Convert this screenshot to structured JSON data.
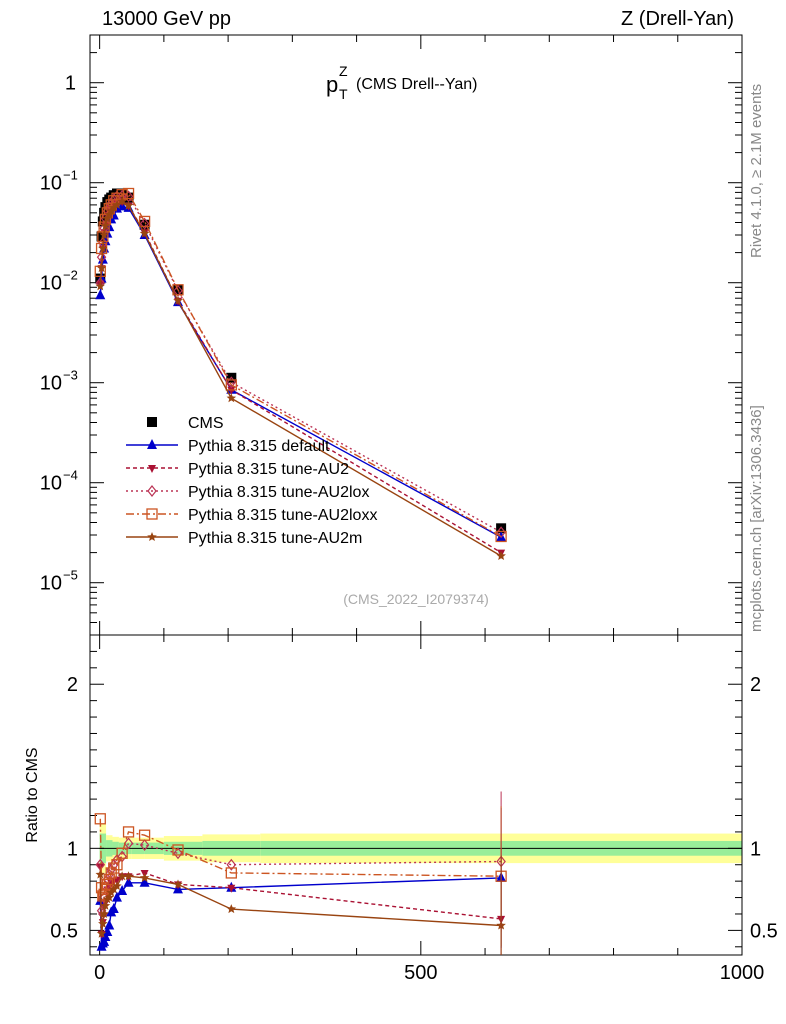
{
  "header": {
    "left": "13000 GeV pp",
    "right": "Z (Drell-Yan)"
  },
  "side_labels": {
    "top": "Rivet 4.1.0, ≥ 2.1M events",
    "bottom": "mcplots.cern.ch [arXiv:1306.3436]"
  },
  "chart_data": [
    {
      "type": "line",
      "panel": "main",
      "title": "p_T^Z (CMS Drell--Yan)",
      "title_main": "p",
      "title_sup": "Z",
      "title_sub": "T",
      "title_rest": "(CMS Drell--Yan)",
      "watermark": "(CMS_2022_I2079374)",
      "yscale": "log",
      "ylim": [
        3e-06,
        3.0
      ],
      "xlim": [
        -15,
        1000
      ],
      "yticks": [
        {
          "value": 1,
          "label": "1"
        },
        {
          "value": 0.1,
          "label": "10",
          "exp": "−1"
        },
        {
          "value": 0.01,
          "label": "10",
          "exp": "−2"
        },
        {
          "value": 0.001,
          "label": "10",
          "exp": "−3"
        },
        {
          "value": 0.0001,
          "label": "10",
          "exp": "−4"
        },
        {
          "value": 1e-05,
          "label": "10",
          "exp": "−5"
        }
      ],
      "legend_position": "lower-left",
      "series": [
        {
          "name": "CMS",
          "color": "#000000",
          "marker": "square",
          "dash": "none",
          "x": [
            1,
            3,
            5,
            7,
            9,
            12,
            15,
            18,
            22,
            27,
            35,
            45,
            70,
            122,
            205,
            625
          ],
          "y": [
            0.011,
            0.029,
            0.041,
            0.05,
            0.057,
            0.064,
            0.068,
            0.071,
            0.075,
            0.078,
            0.078,
            0.071,
            0.038,
            0.0085,
            0.00112,
            3.5e-05
          ]
        },
        {
          "name": "Pythia 8.315 default",
          "color": "#0000cc",
          "marker": "triangle-up",
          "dash": "none",
          "x": [
            1,
            3,
            5,
            7,
            9,
            12,
            15,
            18,
            22,
            27,
            35,
            45,
            70,
            122,
            205,
            625
          ],
          "y": [
            0.0075,
            0.011,
            0.017,
            0.022,
            0.026,
            0.031,
            0.036,
            0.043,
            0.047,
            0.055,
            0.058,
            0.056,
            0.03,
            0.0064,
            0.00085,
            2.85e-05
          ]
        },
        {
          "name": "Pythia 8.315 tune-AU2",
          "color": "#aa1133",
          "marker": "triangle-down",
          "dash": "4,3",
          "x": [
            1,
            3,
            5,
            7,
            9,
            12,
            15,
            18,
            22,
            27,
            35,
            45,
            70,
            122,
            205,
            625
          ],
          "y": [
            0.0098,
            0.014,
            0.022,
            0.032,
            0.038,
            0.048,
            0.052,
            0.056,
            0.06,
            0.063,
            0.065,
            0.059,
            0.032,
            0.0066,
            0.00085,
            2e-05
          ]
        },
        {
          "name": "Pythia 8.315 tune-AU2lox",
          "color": "#bb3355",
          "marker": "diamond",
          "dash": "2,3",
          "x": [
            1,
            3,
            5,
            7,
            9,
            12,
            15,
            18,
            22,
            27,
            35,
            45,
            70,
            122,
            205,
            625
          ],
          "y": [
            0.0099,
            0.018,
            0.025,
            0.035,
            0.044,
            0.052,
            0.057,
            0.062,
            0.068,
            0.073,
            0.074,
            0.073,
            0.039,
            0.0083,
            0.00101,
            3.2e-05
          ]
        },
        {
          "name": "Pythia 8.315 tune-AU2loxx",
          "color": "#cc5522",
          "marker": "square-open",
          "dash": "8,3,2,3",
          "x": [
            1,
            3,
            5,
            7,
            9,
            12,
            15,
            18,
            22,
            27,
            35,
            45,
            70,
            122,
            205,
            625
          ],
          "y": [
            0.013,
            0.022,
            0.029,
            0.036,
            0.043,
            0.05,
            0.055,
            0.06,
            0.066,
            0.07,
            0.076,
            0.078,
            0.041,
            0.0085,
            0.00095,
            2.9e-05
          ]
        },
        {
          "name": "Pythia 8.315 tune-AU2m",
          "color": "#994411",
          "marker": "star",
          "dash": "none",
          "x": [
            1,
            3,
            5,
            7,
            9,
            12,
            15,
            18,
            22,
            27,
            35,
            45,
            70,
            122,
            205,
            625
          ],
          "y": [
            0.0092,
            0.014,
            0.022,
            0.03,
            0.037,
            0.044,
            0.048,
            0.052,
            0.056,
            0.06,
            0.065,
            0.059,
            0.031,
            0.0066,
            0.0007,
            1.85e-05
          ]
        }
      ]
    },
    {
      "type": "line",
      "panel": "ratio",
      "ylabel": "Ratio to CMS",
      "xlabel": "",
      "ylim": [
        0.35,
        2.3
      ],
      "xlim": [
        -15,
        1000
      ],
      "yticks": [
        {
          "value": 0.5,
          "label": "0.5"
        },
        {
          "value": 1,
          "label": "1"
        },
        {
          "value": 2,
          "label": "2"
        }
      ],
      "xticks": [
        {
          "value": 0,
          "label": "0"
        },
        {
          "value": 500,
          "label": "500"
        },
        {
          "value": 1000,
          "label": "1000"
        }
      ],
      "bands": {
        "edges": [
          0,
          10,
          20,
          30,
          40,
          50,
          70,
          100,
          160,
          250,
          1000
        ],
        "green_half": [
          0.09,
          0.05,
          0.04,
          0.035,
          0.035,
          0.035,
          0.035,
          0.04,
          0.045,
          0.045
        ],
        "yellow_half": [
          0.15,
          0.08,
          0.07,
          0.065,
          0.065,
          0.065,
          0.065,
          0.075,
          0.085,
          0.09
        ]
      },
      "series": [
        {
          "name": "Pythia 8.315 default",
          "color": "#0000cc",
          "marker": "triangle-up",
          "dash": "none",
          "x": [
            1,
            3,
            5,
            7,
            9,
            12,
            15,
            18,
            22,
            27,
            35,
            45,
            70,
            122,
            205,
            625
          ],
          "y": [
            0.68,
            0.4,
            0.42,
            0.43,
            0.46,
            0.49,
            0.53,
            0.61,
            0.63,
            0.7,
            0.74,
            0.79,
            0.79,
            0.75,
            0.76,
            0.82
          ]
        },
        {
          "name": "Pythia 8.315 tune-AU2",
          "color": "#aa1133",
          "marker": "triangle-down",
          "dash": "4,3",
          "x": [
            1,
            3,
            5,
            7,
            9,
            12,
            15,
            18,
            22,
            27,
            35,
            45,
            70,
            122,
            205,
            625
          ],
          "y": [
            0.89,
            0.48,
            0.55,
            0.64,
            0.67,
            0.75,
            0.77,
            0.79,
            0.8,
            0.81,
            0.83,
            0.83,
            0.85,
            0.78,
            0.76,
            0.57
          ]
        },
        {
          "name": "Pythia 8.315 tune-AU2lox",
          "color": "#bb3355",
          "marker": "diamond",
          "dash": "2,3",
          "x": [
            1,
            3,
            5,
            7,
            9,
            12,
            15,
            18,
            22,
            27,
            35,
            45,
            70,
            122,
            205,
            625
          ],
          "y": [
            0.9,
            0.62,
            0.6,
            0.7,
            0.77,
            0.81,
            0.84,
            0.87,
            0.9,
            0.93,
            0.95,
            1.03,
            1.02,
            0.97,
            0.9,
            0.92
          ]
        },
        {
          "name": "Pythia 8.315 tune-AU2loxx",
          "color": "#cc5522",
          "marker": "square-open",
          "dash": "8,3,2,3",
          "x": [
            1,
            3,
            5,
            7,
            9,
            12,
            15,
            18,
            22,
            27,
            35,
            45,
            70,
            122,
            205,
            625
          ],
          "y": [
            1.18,
            0.76,
            0.71,
            0.72,
            0.75,
            0.78,
            0.81,
            0.85,
            0.88,
            0.9,
            0.97,
            1.1,
            1.08,
            0.99,
            0.85,
            0.83
          ]
        },
        {
          "name": "Pythia 8.315 tune-AU2m",
          "color": "#994411",
          "marker": "star",
          "dash": "none",
          "x": [
            1,
            3,
            5,
            7,
            9,
            12,
            15,
            18,
            22,
            27,
            35,
            45,
            70,
            122,
            205,
            625
          ],
          "y": [
            0.84,
            0.48,
            0.54,
            0.6,
            0.65,
            0.69,
            0.7,
            0.73,
            0.75,
            0.77,
            0.83,
            0.83,
            0.82,
            0.78,
            0.63,
            0.53
          ]
        }
      ]
    }
  ]
}
